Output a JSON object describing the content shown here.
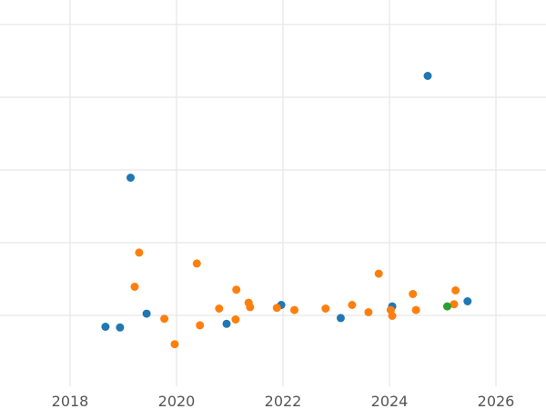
{
  "chart_data": {
    "type": "scatter",
    "title": "",
    "xlabel": "",
    "ylabel": "",
    "x_ticks": [
      "2018",
      "2020",
      "2022",
      "2024",
      "2026"
    ],
    "xlim": [
      "2017-01-01",
      "2026-12-31"
    ],
    "grid": true,
    "legend": "none",
    "series": [
      {
        "color": "#1f77b4",
        "points": [
          {
            "x": "2018-09-01",
            "y": 0.5
          },
          {
            "x": "2018-12-10",
            "y": 0.4
          },
          {
            "x": "2019-02-20",
            "y": 21.0
          },
          {
            "x": "2019-06-10",
            "y": 2.3
          },
          {
            "x": "2020-12-10",
            "y": 0.9
          },
          {
            "x": "2021-12-20",
            "y": 3.5
          },
          {
            "x": "2023-02-01",
            "y": 1.7
          },
          {
            "x": "2024-01-20",
            "y": 3.3
          },
          {
            "x": "2024-09-20",
            "y": 35.0
          },
          {
            "x": "2025-06-20",
            "y": 4.0
          }
        ]
      },
      {
        "color": "#ff7f0e",
        "points": [
          {
            "x": "2019-03-20",
            "y": 6.0
          },
          {
            "x": "2019-04-20",
            "y": 10.7
          },
          {
            "x": "2019-10-10",
            "y": 1.6
          },
          {
            "x": "2019-12-20",
            "y": -1.9
          },
          {
            "x": "2020-05-20",
            "y": 9.2
          },
          {
            "x": "2020-06-10",
            "y": 0.7
          },
          {
            "x": "2020-10-20",
            "y": 3.0
          },
          {
            "x": "2021-02-10",
            "y": 1.5
          },
          {
            "x": "2021-02-15",
            "y": 5.6
          },
          {
            "x": "2021-05-10",
            "y": 3.8
          },
          {
            "x": "2021-05-20",
            "y": 3.2
          },
          {
            "x": "2021-11-20",
            "y": 3.1
          },
          {
            "x": "2022-03-20",
            "y": 2.8
          },
          {
            "x": "2022-10-20",
            "y": 3.0
          },
          {
            "x": "2023-04-20",
            "y": 3.5
          },
          {
            "x": "2023-08-10",
            "y": 2.5
          },
          {
            "x": "2023-10-20",
            "y": 7.8
          },
          {
            "x": "2024-01-10",
            "y": 2.8
          },
          {
            "x": "2024-01-20",
            "y": 2.0
          },
          {
            "x": "2024-06-10",
            "y": 5.0
          },
          {
            "x": "2024-07-01",
            "y": 2.8
          },
          {
            "x": "2025-03-20",
            "y": 3.6
          },
          {
            "x": "2025-03-30",
            "y": 5.5
          }
        ]
      },
      {
        "color": "#2ca02c",
        "points": [
          {
            "x": "2025-02-01",
            "y": 3.3
          }
        ]
      }
    ]
  }
}
